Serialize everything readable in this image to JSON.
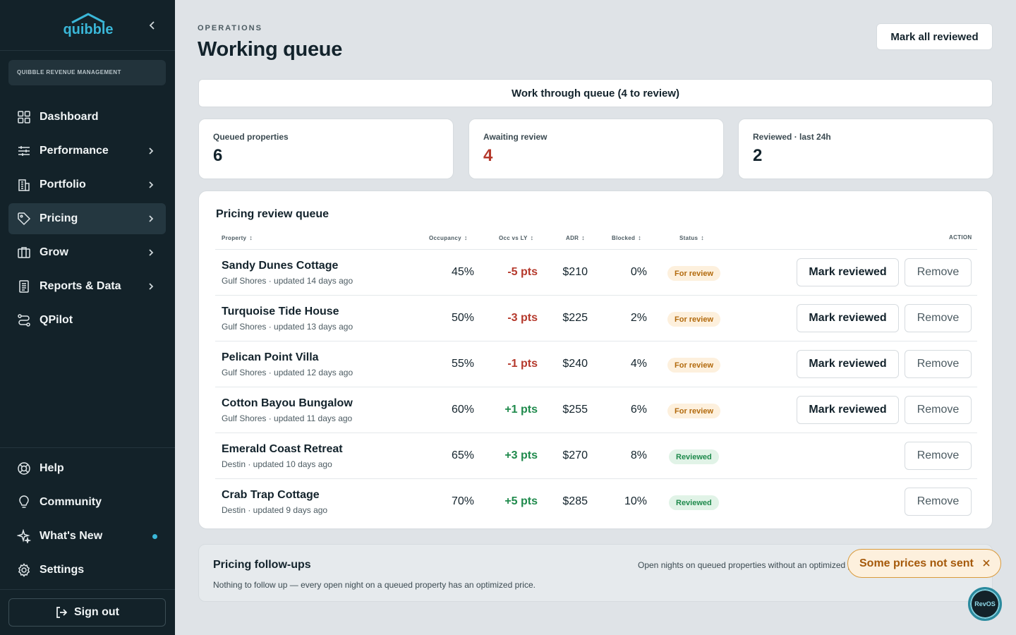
{
  "app": {
    "brand": "quibble",
    "org_name": "QUIBBLE REVENUE MANAGEMENT"
  },
  "sidebar": {
    "items": [
      {
        "label": "Dashboard",
        "icon": "grid-icon",
        "has_chevron": false
      },
      {
        "label": "Performance",
        "icon": "sliders-icon",
        "has_chevron": true
      },
      {
        "label": "Portfolio",
        "icon": "building-icon",
        "has_chevron": true
      },
      {
        "label": "Pricing",
        "icon": "tag-icon",
        "has_chevron": true,
        "active": true
      },
      {
        "label": "Grow",
        "icon": "briefcase-icon",
        "has_chevron": true
      },
      {
        "label": "Reports & Data",
        "icon": "report-icon",
        "has_chevron": true
      },
      {
        "label": "QPilot",
        "icon": "route-icon",
        "has_chevron": false
      }
    ],
    "bottom_items": [
      {
        "label": "Help",
        "icon": "lifebuoy-icon"
      },
      {
        "label": "Community",
        "icon": "lightbulb-icon"
      },
      {
        "label": "What's New",
        "icon": "sparkle-icon",
        "has_dot": true
      },
      {
        "label": "Settings",
        "icon": "gear-icon"
      }
    ],
    "sign_out": "Sign out"
  },
  "header": {
    "eyebrow": "OPERATIONS",
    "title": "Working queue",
    "mark_all_label": "Mark all reviewed",
    "queue_button_label": "Work through queue (4 to review)"
  },
  "stats": [
    {
      "label": "Queued properties",
      "value": "6"
    },
    {
      "label": "Awaiting review",
      "value": "4",
      "color": "#b5392c"
    },
    {
      "label": "Reviewed · last 24h",
      "value": "2"
    }
  ],
  "queue": {
    "title": "Pricing review queue",
    "columns": {
      "property": "Property",
      "occupancy": "Occupancy",
      "occ_vs_ly": "Occ vs LY",
      "adr": "ADR",
      "blocked": "Blocked",
      "status": "Status",
      "action": "ACTION"
    },
    "rows": [
      {
        "name": "Sandy Dunes Cottage",
        "sub": "Gulf Shores · updated 14 days ago",
        "occupancy": "45%",
        "occ_vs_ly": "-5 pts",
        "trend": "neg",
        "adr": "$210",
        "blocked": "0%",
        "status": "For review",
        "mark_label": "Mark reviewed",
        "remove_label": "Remove"
      },
      {
        "name": "Turquoise Tide House",
        "sub": "Gulf Shores · updated 13 days ago",
        "occupancy": "50%",
        "occ_vs_ly": "-3 pts",
        "trend": "neg",
        "adr": "$225",
        "blocked": "2%",
        "status": "For review",
        "mark_label": "Mark reviewed",
        "remove_label": "Remove"
      },
      {
        "name": "Pelican Point Villa",
        "sub": "Gulf Shores · updated 12 days ago",
        "occupancy": "55%",
        "occ_vs_ly": "-1 pts",
        "trend": "neg",
        "adr": "$240",
        "blocked": "4%",
        "status": "For review",
        "mark_label": "Mark reviewed",
        "remove_label": "Remove"
      },
      {
        "name": "Cotton Bayou Bungalow",
        "sub": "Gulf Shores · updated 11 days ago",
        "occupancy": "60%",
        "occ_vs_ly": "+1 pts",
        "trend": "pos",
        "adr": "$255",
        "blocked": "6%",
        "status": "For review",
        "mark_label": "Mark reviewed",
        "remove_label": "Remove"
      },
      {
        "name": "Emerald Coast Retreat",
        "sub": "Destin · updated 10 days ago",
        "occupancy": "65%",
        "occ_vs_ly": "+3 pts",
        "trend": "pos",
        "adr": "$270",
        "blocked": "8%",
        "status": "Reviewed",
        "remove_label": "Remove"
      },
      {
        "name": "Crab Trap Cottage",
        "sub": "Destin · updated 9 days ago",
        "occupancy": "70%",
        "occ_vs_ly": "+5 pts",
        "trend": "pos",
        "adr": "$285",
        "blocked": "10%",
        "status": "Reviewed",
        "remove_label": "Remove"
      }
    ]
  },
  "followups": {
    "title": "Pricing follow-ups",
    "description": "Open nights on queued properties without an optimized price.",
    "empty_text": "Nothing to follow up — every open night on a queued property has an optimized price."
  },
  "toast": {
    "text": "Some prices not sent"
  },
  "assistant": {
    "label": "RevOS"
  }
}
